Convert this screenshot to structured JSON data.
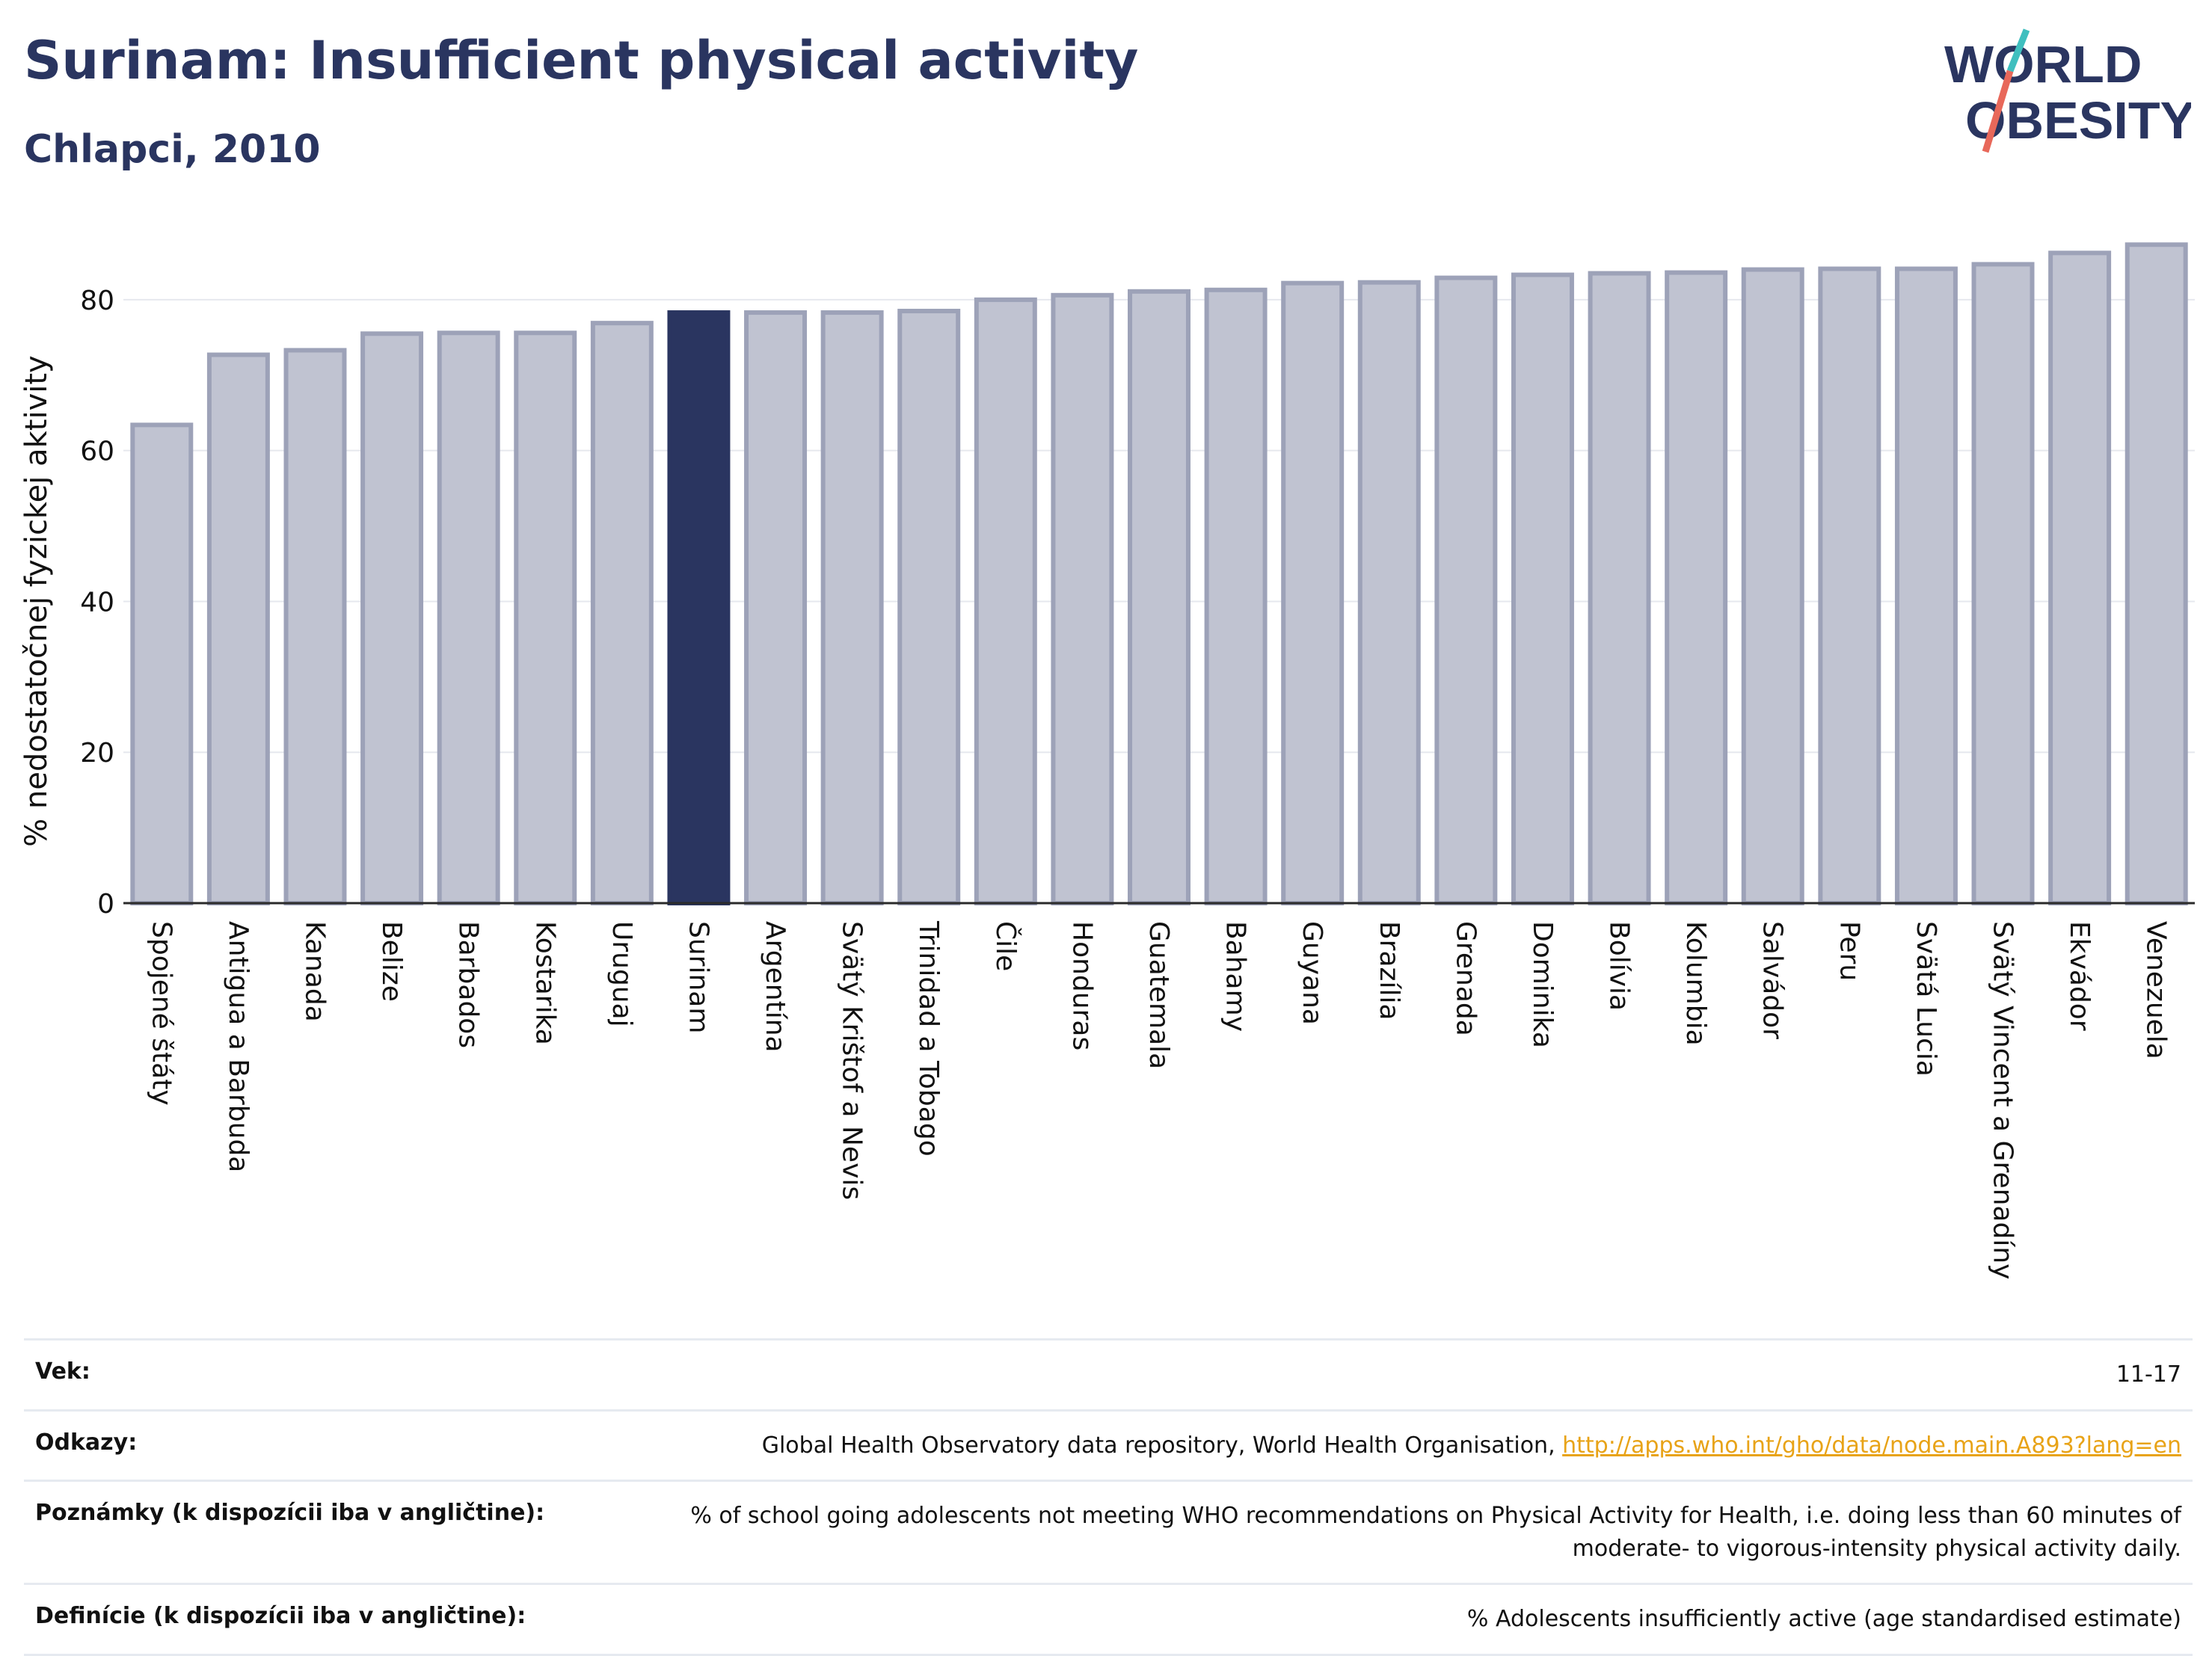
{
  "header": {
    "title": "Surinam: Insufficient physical activity",
    "subtitle": "Chlapci, 2010"
  },
  "logo": {
    "line1": "WORLD",
    "line2": "OBESITY"
  },
  "colors": {
    "bar": "#c0c3d1",
    "bar_edge": "#9da2b8",
    "highlight": "#2a3560",
    "grid": "#e6e8ee",
    "link": "#e8a317"
  },
  "chart_data": {
    "type": "bar",
    "title": "Surinam: Insufficient physical activity",
    "subtitle": "Chlapci, 2010",
    "ylabel": "% nedostatočnej fyzickej aktivity",
    "xlabel": "",
    "ylim": [
      0,
      90
    ],
    "yticks": [
      0,
      20,
      40,
      60,
      80
    ],
    "grid": true,
    "highlight": "Surinam",
    "categories": [
      "Spojené štáty",
      "Antigua a Barbuda",
      "Kanada",
      "Belize",
      "Barbados",
      "Kostarika",
      "Uruguaj",
      "Surinam",
      "Argentína",
      "Svätý Krištof a Nevis",
      "Trinidad a Tobago",
      "Čile",
      "Honduras",
      "Guatemala",
      "Bahamy",
      "Guyana",
      "Brazília",
      "Grenada",
      "Dominika",
      "Bolívia",
      "Kolumbia",
      "Salvádor",
      "Peru",
      "Svätá Lucia",
      "Svätý Vincent a Grenadíny",
      "Ekvádor",
      "Venezuela"
    ],
    "values": [
      63.4,
      72.7,
      73.3,
      75.5,
      75.6,
      75.6,
      76.9,
      78.3,
      78.3,
      78.3,
      78.5,
      80.0,
      80.6,
      81.1,
      81.3,
      82.2,
      82.3,
      82.9,
      83.3,
      83.5,
      83.6,
      84.0,
      84.1,
      84.1,
      84.7,
      86.2,
      87.3
    ]
  },
  "meta": {
    "age_label": "Vek:",
    "age_value": "11-17",
    "refs_label": "Odkazy:",
    "refs_text": "Global Health Observatory data repository, World Health Organisation, ",
    "refs_link": "http://apps.who.int/gho/data/node.main.A893?lang=en",
    "notes_label": "Poznámky (k dispozícii iba v angličtine):",
    "notes_value": "% of school going adolescents not meeting WHO recommendations on Physical Activity for Health, i.e. doing less than 60 minutes of moderate- to vigorous-intensity physical activity daily.",
    "def_label": "Definície (k dispozícii iba v angličtine):",
    "def_value": "% Adolescents insufficiently active (age standardised estimate)"
  }
}
